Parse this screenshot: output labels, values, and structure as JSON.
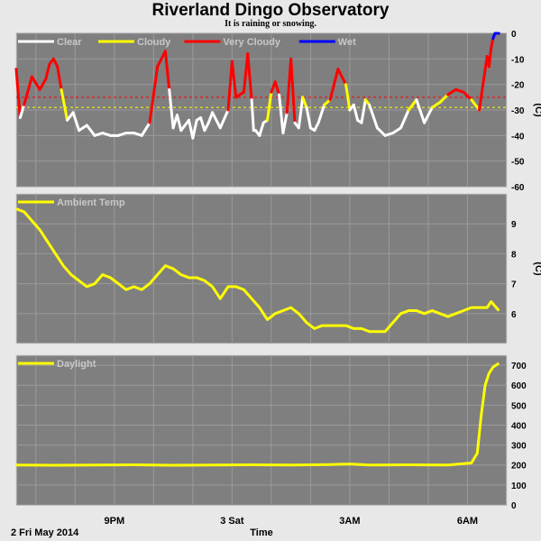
{
  "title": "Riverland Dingo Observatory",
  "subtitle": "It is raining or snowing.",
  "footer": {
    "date": "2 Fri May 2014",
    "time_label": "Time"
  },
  "x_ticks": [
    {
      "label": "9PM",
      "hour": 2.5
    },
    {
      "label": "3 Sat",
      "hour": 5.5
    },
    {
      "label": "3AM",
      "hour": 8.5
    },
    {
      "label": "6AM",
      "hour": 11.5
    }
  ],
  "chart_data": [
    {
      "type": "line",
      "name": "cloud",
      "ylabel": "(C)",
      "ylim": [
        -60,
        0
      ],
      "yticks": [
        0,
        -10,
        -20,
        -30,
        -40,
        -50,
        -60
      ],
      "thresholds": [
        {
          "value": -25,
          "color": "#ff0000"
        },
        {
          "value": -29,
          "color": "#ffff00"
        }
      ],
      "legend": [
        {
          "label": "Clear",
          "color": "#ffffff"
        },
        {
          "label": "Cloudy",
          "color": "#ffff00"
        },
        {
          "label": "Very Cloudy",
          "color": "#ff0000"
        },
        {
          "label": "Wet",
          "color": "#0000ff"
        }
      ],
      "series": [
        {
          "x": [
            0.0,
            0.1,
            0.2,
            0.4,
            0.6,
            0.75,
            0.85,
            0.95,
            1.05,
            1.15,
            1.3,
            1.45,
            1.6,
            1.8,
            2.0,
            2.2,
            2.4,
            2.6,
            2.8,
            3.0,
            3.2,
            3.4,
            3.6,
            3.8,
            3.9,
            4.0,
            4.1,
            4.2,
            4.3,
            4.4,
            4.5,
            4.6,
            4.7,
            4.8,
            4.9,
            5.0,
            5.2,
            5.4,
            5.5,
            5.6,
            5.8,
            5.9,
            6.0,
            6.05,
            6.1,
            6.2,
            6.3,
            6.4,
            6.5,
            6.6,
            6.7,
            6.8,
            6.9,
            7.0,
            7.1,
            7.2,
            7.3,
            7.4,
            7.5,
            7.6,
            7.7,
            7.85,
            8.0,
            8.2,
            8.4,
            8.5,
            8.6,
            8.7,
            8.8,
            8.9,
            9.0,
            9.2,
            9.4,
            9.6,
            9.8,
            10.0,
            10.2,
            10.4,
            10.6,
            10.8,
            11.0,
            11.2,
            11.4,
            11.6,
            11.8,
            12.0,
            12.05,
            12.1,
            12.15,
            12.2,
            12.3
          ],
          "y": [
            -14,
            -33,
            -28,
            -17,
            -22,
            -18,
            -12,
            -10,
            -13,
            -22,
            -34,
            -31,
            -38,
            -36,
            -40,
            -39,
            -40,
            -40,
            -39,
            -39,
            -40,
            -35,
            -13,
            -7,
            -22,
            -37,
            -32,
            -38,
            -36,
            -34,
            -41,
            -34,
            -33,
            -38,
            -35,
            -31,
            -37,
            -30,
            -11,
            -25,
            -23,
            -8,
            -26,
            -38,
            -38,
            -40,
            -35,
            -34,
            -23,
            -19,
            -24,
            -39,
            -31,
            -10,
            -35,
            -37,
            -25,
            -29,
            -37,
            -38,
            -35,
            -28,
            -26,
            -14,
            -20,
            -30,
            -28,
            -34,
            -35,
            -26,
            -28,
            -37,
            -40,
            -39,
            -37,
            -30,
            -26,
            -35,
            -29,
            -27,
            -24,
            -22,
            -23,
            -26,
            -30,
            -9,
            -13,
            -6,
            -2,
            0,
            0
          ]
        }
      ]
    },
    {
      "type": "line",
      "name": "ambient",
      "ylabel": "(C)",
      "ylim": [
        5,
        10
      ],
      "yticks": [
        6,
        7,
        8,
        9
      ],
      "legend": [
        {
          "label": "Ambient Temp",
          "color": "#ffff00"
        }
      ],
      "series": [
        {
          "x": [
            0.0,
            0.2,
            0.4,
            0.6,
            0.8,
            1.0,
            1.2,
            1.4,
            1.6,
            1.8,
            2.0,
            2.2,
            2.4,
            2.6,
            2.8,
            3.0,
            3.2,
            3.4,
            3.6,
            3.8,
            4.0,
            4.2,
            4.4,
            4.6,
            4.8,
            5.0,
            5.2,
            5.4,
            5.6,
            5.8,
            6.0,
            6.2,
            6.4,
            6.6,
            6.8,
            7.0,
            7.2,
            7.4,
            7.6,
            7.8,
            8.0,
            8.2,
            8.4,
            8.6,
            8.8,
            9.0,
            9.2,
            9.4,
            9.6,
            9.8,
            10.0,
            10.2,
            10.4,
            10.6,
            10.8,
            11.0,
            11.2,
            11.4,
            11.6,
            11.8,
            12.0,
            12.1,
            12.3
          ],
          "y": [
            9.5,
            9.4,
            9.1,
            8.8,
            8.4,
            8.0,
            7.6,
            7.3,
            7.1,
            6.9,
            7.0,
            7.3,
            7.2,
            7.0,
            6.8,
            6.9,
            6.8,
            7.0,
            7.3,
            7.6,
            7.5,
            7.3,
            7.2,
            7.2,
            7.1,
            6.9,
            6.5,
            6.9,
            6.9,
            6.8,
            6.5,
            6.2,
            5.8,
            6.0,
            6.1,
            6.2,
            6.0,
            5.7,
            5.5,
            5.6,
            5.6,
            5.6,
            5.6,
            5.5,
            5.5,
            5.4,
            5.4,
            5.4,
            5.7,
            6.0,
            6.1,
            6.1,
            6.0,
            6.1,
            6.0,
            5.9,
            6.0,
            6.1,
            6.2,
            6.2,
            6.2,
            6.4,
            6.1
          ]
        }
      ]
    },
    {
      "type": "line",
      "name": "daylight",
      "ylabel": "",
      "ylim": [
        0,
        750
      ],
      "yticks": [
        0,
        100,
        200,
        300,
        400,
        500,
        600,
        700
      ],
      "legend": [
        {
          "label": "Daylight",
          "color": "#ffff00"
        }
      ],
      "series": [
        {
          "x": [
            0.0,
            1.0,
            2.0,
            3.0,
            4.0,
            5.0,
            6.0,
            7.0,
            8.0,
            8.5,
            9.0,
            10.0,
            11.0,
            11.6,
            11.75,
            11.85,
            11.95,
            12.05,
            12.15,
            12.3
          ],
          "y": [
            200,
            199,
            200,
            201,
            199,
            200,
            201,
            200,
            202,
            205,
            200,
            201,
            200,
            210,
            260,
            450,
            600,
            660,
            690,
            710
          ]
        }
      ]
    }
  ]
}
